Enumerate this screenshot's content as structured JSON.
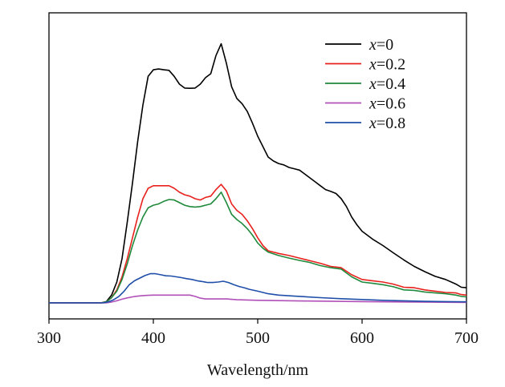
{
  "chart_data": {
    "type": "line",
    "title": "",
    "xlabel": "Wavelength/nm",
    "ylabel": "",
    "xlim": [
      300,
      700
    ],
    "ylim": [
      0,
      1.0
    ],
    "xticks": [
      300,
      400,
      500,
      600,
      700
    ],
    "xtick_labels": [
      "300",
      "400",
      "500",
      "600",
      "700"
    ],
    "grid": false,
    "legend_position": "top-right",
    "series": [
      {
        "name": "x=0",
        "var": "x",
        "value_label": "=0",
        "color": "#000000",
        "x": [
          300,
          350,
          355,
          360,
          365,
          370,
          375,
          380,
          385,
          390,
          395,
          400,
          405,
          410,
          415,
          420,
          425,
          430,
          435,
          440,
          445,
          450,
          455,
          460,
          465,
          470,
          475,
          480,
          485,
          490,
          495,
          500,
          505,
          510,
          515,
          520,
          525,
          530,
          535,
          540,
          545,
          550,
          555,
          560,
          565,
          570,
          575,
          580,
          585,
          590,
          595,
          600,
          610,
          620,
          630,
          640,
          650,
          660,
          670,
          680,
          690,
          695,
          700
        ],
        "y": [
          0.0,
          0.0,
          0.005,
          0.03,
          0.08,
          0.17,
          0.31,
          0.46,
          0.62,
          0.76,
          0.87,
          0.895,
          0.898,
          0.895,
          0.893,
          0.87,
          0.84,
          0.825,
          0.824,
          0.825,
          0.84,
          0.865,
          0.88,
          0.95,
          0.995,
          0.92,
          0.83,
          0.785,
          0.765,
          0.735,
          0.69,
          0.64,
          0.6,
          0.56,
          0.545,
          0.535,
          0.53,
          0.52,
          0.515,
          0.51,
          0.495,
          0.48,
          0.465,
          0.45,
          0.435,
          0.428,
          0.42,
          0.4,
          0.37,
          0.33,
          0.3,
          0.275,
          0.245,
          0.22,
          0.192,
          0.165,
          0.14,
          0.12,
          0.102,
          0.09,
          0.072,
          0.06,
          0.058
        ]
      },
      {
        "name": "x=0.2",
        "var": "x",
        "value_label": "=0.2",
        "color": "#e8211d",
        "x": [
          300,
          350,
          355,
          360,
          365,
          370,
          375,
          380,
          385,
          390,
          395,
          400,
          405,
          410,
          415,
          420,
          425,
          430,
          435,
          440,
          445,
          450,
          455,
          460,
          465,
          470,
          475,
          480,
          485,
          490,
          495,
          500,
          505,
          510,
          520,
          530,
          540,
          550,
          560,
          570,
          580,
          590,
          600,
          610,
          620,
          630,
          640,
          650,
          660,
          670,
          680,
          690,
          695,
          700
        ],
        "y": [
          0.0,
          0.0,
          0.004,
          0.02,
          0.05,
          0.1,
          0.17,
          0.25,
          0.33,
          0.4,
          0.44,
          0.45,
          0.45,
          0.45,
          0.45,
          0.44,
          0.425,
          0.415,
          0.41,
          0.4,
          0.395,
          0.405,
          0.41,
          0.435,
          0.455,
          0.43,
          0.38,
          0.355,
          0.34,
          0.315,
          0.285,
          0.25,
          0.22,
          0.2,
          0.19,
          0.182,
          0.172,
          0.162,
          0.152,
          0.14,
          0.135,
          0.108,
          0.09,
          0.085,
          0.08,
          0.072,
          0.06,
          0.058,
          0.05,
          0.045,
          0.04,
          0.038,
          0.032,
          0.03
        ]
      },
      {
        "name": "x=0.4",
        "var": "x",
        "value_label": "=0.4",
        "color": "#1f8a3c",
        "x": [
          300,
          350,
          355,
          360,
          365,
          370,
          375,
          380,
          385,
          390,
          395,
          400,
          405,
          410,
          415,
          420,
          425,
          430,
          435,
          440,
          445,
          450,
          455,
          460,
          465,
          470,
          475,
          480,
          485,
          490,
          495,
          500,
          505,
          510,
          520,
          530,
          540,
          550,
          560,
          570,
          580,
          590,
          600,
          610,
          620,
          630,
          640,
          650,
          660,
          670,
          680,
          690,
          695,
          700
        ],
        "y": [
          0.0,
          0.0,
          0.004,
          0.02,
          0.045,
          0.09,
          0.15,
          0.22,
          0.28,
          0.33,
          0.365,
          0.375,
          0.38,
          0.39,
          0.397,
          0.395,
          0.385,
          0.375,
          0.37,
          0.368,
          0.37,
          0.375,
          0.38,
          0.4,
          0.425,
          0.385,
          0.34,
          0.32,
          0.305,
          0.285,
          0.26,
          0.23,
          0.21,
          0.195,
          0.182,
          0.172,
          0.163,
          0.155,
          0.143,
          0.135,
          0.13,
          0.1,
          0.08,
          0.075,
          0.07,
          0.062,
          0.05,
          0.048,
          0.042,
          0.038,
          0.035,
          0.03,
          0.025,
          0.023
        ]
      },
      {
        "name": "x=0.6",
        "var": "x",
        "value_label": "=0.6",
        "color": "#b050b8",
        "x": [
          300,
          355,
          360,
          365,
          370,
          375,
          380,
          385,
          390,
          395,
          400,
          410,
          420,
          430,
          435,
          440,
          445,
          450,
          460,
          470,
          480,
          500,
          550,
          600,
          650,
          700
        ],
        "y": [
          0.0,
          0.0,
          0.003,
          0.008,
          0.014,
          0.019,
          0.023,
          0.026,
          0.028,
          0.029,
          0.03,
          0.03,
          0.03,
          0.03,
          0.03,
          0.025,
          0.018,
          0.015,
          0.015,
          0.015,
          0.012,
          0.01,
          0.007,
          0.005,
          0.003,
          0.002
        ]
      },
      {
        "name": "x=0.8",
        "var": "x",
        "value_label": "=0.8",
        "color": "#1f4fa8",
        "x": [
          300,
          352,
          357,
          362,
          367,
          372,
          377,
          382,
          387,
          392,
          397,
          402,
          407,
          412,
          417,
          422,
          427,
          432,
          437,
          442,
          447,
          452,
          457,
          462,
          467,
          472,
          477,
          482,
          487,
          492,
          500,
          510,
          520,
          540,
          560,
          580,
          600,
          620,
          640,
          660,
          680,
          700
        ],
        "y": [
          0.0,
          0.0,
          0.004,
          0.012,
          0.025,
          0.045,
          0.07,
          0.085,
          0.095,
          0.105,
          0.112,
          0.112,
          0.108,
          0.104,
          0.103,
          0.1,
          0.097,
          0.093,
          0.09,
          0.085,
          0.082,
          0.078,
          0.078,
          0.08,
          0.083,
          0.078,
          0.07,
          0.063,
          0.058,
          0.052,
          0.045,
          0.035,
          0.03,
          0.025,
          0.02,
          0.016,
          0.013,
          0.01,
          0.008,
          0.006,
          0.005,
          0.004
        ]
      }
    ]
  }
}
